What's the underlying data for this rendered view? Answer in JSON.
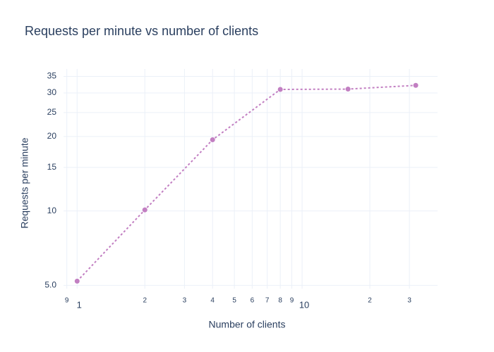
{
  "chart_data": {
    "type": "line",
    "title": "Requests per minute vs number of clients",
    "x_label": "Number of clients",
    "y_label": "Requests per minute",
    "x": [
      1,
      2,
      4,
      8,
      16,
      32
    ],
    "series": [
      {
        "name": "Requests per minute",
        "color": "#c27fc2",
        "values": [
          5.2,
          10.1,
          19.4,
          31.0,
          31.1,
          32.2
        ]
      }
    ],
    "x_log": true,
    "y_log": true,
    "grid": true,
    "xlim": [
      0.87,
      40
    ],
    "ylim": [
      4.85,
      37.5
    ],
    "xticks": [
      {
        "value": 0.9,
        "label": "9"
      },
      1,
      2,
      3,
      4,
      5,
      6,
      7,
      8,
      9,
      10,
      {
        "value": 20,
        "label": "2"
      },
      {
        "value": 30,
        "label": "3"
      }
    ],
    "yticks": [
      {
        "value": 5,
        "label": "5.0"
      },
      10,
      15,
      20,
      25,
      30,
      35
    ]
  }
}
